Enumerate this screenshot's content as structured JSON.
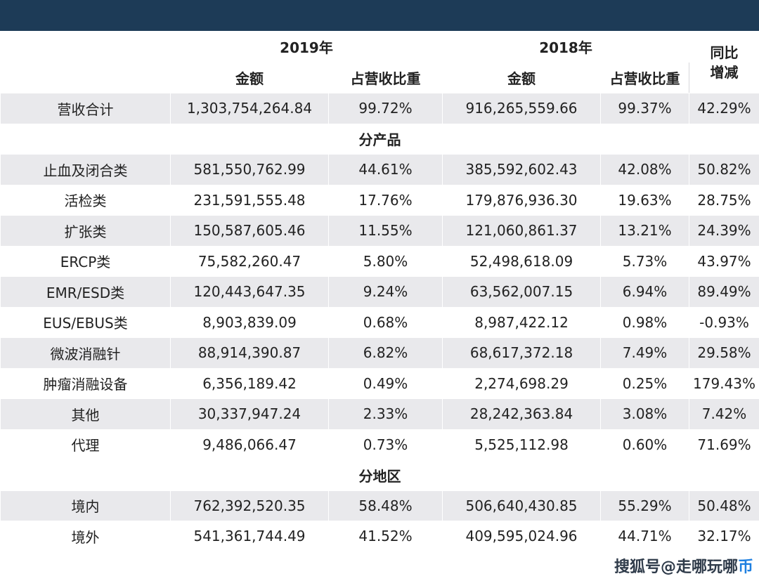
{
  "header": {
    "year_2019": "2019年",
    "year_2018": "2018年",
    "amount": "金额",
    "share": "占营收比重",
    "yoy": "同比\n增减"
  },
  "total": {
    "label": "营收合计",
    "a2019": "1,303,754,264.84",
    "s2019": "99.72%",
    "a2018": "916,265,559.66",
    "s2018": "99.37%",
    "yoy": "42.29%"
  },
  "sections": {
    "by_product": "分产品",
    "by_region": "分地区"
  },
  "products": [
    {
      "label": "止血及闭合类",
      "a2019": "581,550,762.99",
      "s2019": "44.61%",
      "a2018": "385,592,602.43",
      "s2018": "42.08%",
      "yoy": "50.82%"
    },
    {
      "label": "活检类",
      "a2019": "231,591,555.48",
      "s2019": "17.76%",
      "a2018": "179,876,936.30",
      "s2018": "19.63%",
      "yoy": "28.75%"
    },
    {
      "label": "扩张类",
      "a2019": "150,587,605.46",
      "s2019": "11.55%",
      "a2018": "121,060,861.37",
      "s2018": "13.21%",
      "yoy": "24.39%"
    },
    {
      "label": "ERCP类",
      "a2019": "75,582,260.47",
      "s2019": "5.80%",
      "a2018": "52,498,618.09",
      "s2018": "5.73%",
      "yoy": "43.97%"
    },
    {
      "label": "EMR/ESD类",
      "a2019": "120,443,647.35",
      "s2019": "9.24%",
      "a2018": "63,562,007.15",
      "s2018": "6.94%",
      "yoy": "89.49%"
    },
    {
      "label": "EUS/EBUS类",
      "a2019": "8,903,839.09",
      "s2019": "0.68%",
      "a2018": "8,987,422.12",
      "s2018": "0.98%",
      "yoy": "-0.93%"
    },
    {
      "label": "微波消融针",
      "a2019": "88,914,390.87",
      "s2019": "6.82%",
      "a2018": "68,617,372.18",
      "s2018": "7.49%",
      "yoy": "29.58%"
    },
    {
      "label": "肿瘤消融设备",
      "a2019": "6,356,189.42",
      "s2019": "0.49%",
      "a2018": "2,274,698.29",
      "s2018": "0.25%",
      "yoy": "179.43%"
    },
    {
      "label": "其他",
      "a2019": "30,337,947.24",
      "s2019": "2.33%",
      "a2018": "28,242,363.84",
      "s2018": "3.08%",
      "yoy": "7.42%"
    },
    {
      "label": "代理",
      "a2019": "9,486,066.47",
      "s2019": "0.73%",
      "a2018": "5,525,112.98",
      "s2018": "0.60%",
      "yoy": "71.69%"
    }
  ],
  "regions": [
    {
      "label": "境内",
      "a2019": "762,392,520.35",
      "s2019": "58.48%",
      "a2018": "506,640,430.85",
      "s2018": "55.29%",
      "yoy": "50.48%"
    },
    {
      "label": "境外",
      "a2019": "541,361,744.49",
      "s2019": "41.52%",
      "a2018": "409,595,024.96",
      "s2018": "44.71%",
      "yoy": "32.17%"
    }
  ],
  "watermark": {
    "part1": "搜狐号@走哪玩哪",
    "part2": "币"
  },
  "colors": {
    "topbar": "#1d3b57",
    "shade": "#e9e9ec"
  }
}
